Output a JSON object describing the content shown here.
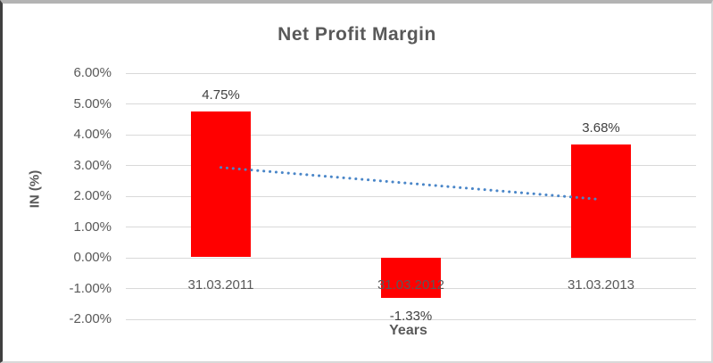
{
  "chart_data": {
    "type": "bar",
    "title": "Net Profit Margin",
    "xlabel": "Years",
    "ylabel": "IN (%)",
    "categories": [
      "31.03.2011",
      "31.03.2012",
      "31.03.2013"
    ],
    "series": [
      {
        "name": "Net Profit Margin",
        "values": [
          4.75,
          -1.33,
          3.68
        ],
        "data_labels": [
          "4.75%",
          "-1.33%",
          "3.68%"
        ],
        "color": "#ff0000"
      }
    ],
    "trendline": {
      "type": "linear",
      "style": "dotted",
      "color": "#4a86c8",
      "start_value": 2.92,
      "end_value": 1.88
    },
    "ylim": [
      -2,
      6
    ],
    "ytick_step": 1,
    "ytick_labels": [
      "6.00%",
      "5.00%",
      "4.00%",
      "3.00%",
      "2.00%",
      "1.00%",
      "0.00%",
      "-1.00%",
      "-2.00%"
    ],
    "grid": true,
    "legend": "none",
    "bar_color_name": "red",
    "background": "#ffffff",
    "gridline_color": "#d9d9d9",
    "text_color": "#595959",
    "data_label_color": "#404040"
  }
}
